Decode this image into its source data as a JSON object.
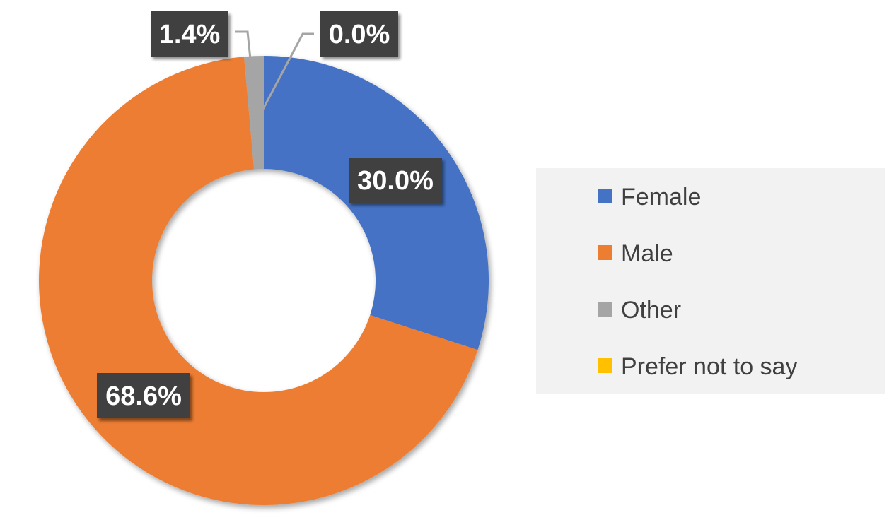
{
  "chart_data": {
    "type": "pie",
    "donut": true,
    "categories": [
      "Female",
      "Male",
      "Other",
      "Prefer not to say"
    ],
    "values": [
      30.0,
      68.6,
      1.4,
      0.0
    ],
    "data_labels": [
      "30.0%",
      "68.6%",
      "1.4%",
      "0.0%"
    ],
    "colors": [
      "#4472C4",
      "#ED7D31",
      "#A5A5A5",
      "#FFC000"
    ],
    "legend_position": "right",
    "title": ""
  }
}
